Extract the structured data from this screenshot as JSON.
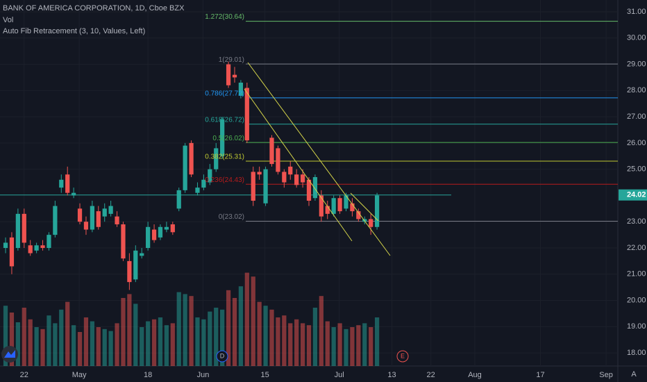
{
  "chart_data": {
    "type": "candlestick",
    "title": "BANK OF AMERICA CORPORATION, 1D, Cboe BZX",
    "volume_label": "Vol",
    "indicator_label": "Auto Fib Retracement (3, 10, Values, Left)",
    "open": [
      22.0,
      22.4,
      22.0,
      23.3,
      22.1,
      21.9,
      22.1,
      22.0,
      22.5,
      24.3,
      24.8,
      24.0,
      23.5,
      23.0,
      22.7,
      23.4,
      23.2,
      23.3,
      23.2,
      22.9,
      21.5,
      20.8,
      21.7,
      22.0,
      22.7,
      22.4,
      22.7,
      22.9,
      23.5,
      24.2,
      26.0,
      24.1,
      24.3,
      24.5,
      25.0,
      25.5,
      29.0,
      28.6,
      27.8,
      28.1,
      24.9,
      24.9,
      23.7,
      26.2,
      25.8,
      24.9,
      25.1,
      24.8,
      24.8,
      24.6,
      23.9,
      24.0,
      23.6,
      23.3,
      23.9,
      23.5,
      23.7,
      23.4,
      23.0,
      23.1,
      22.8
    ],
    "close": [
      22.2,
      21.3,
      23.3,
      22.2,
      21.8,
      22.1,
      22.0,
      22.5,
      23.6,
      24.6,
      24.1,
      24.1,
      23.0,
      22.7,
      23.6,
      22.8,
      23.5,
      23.6,
      22.9,
      21.6,
      20.7,
      21.9,
      21.8,
      22.8,
      22.3,
      22.8,
      22.8,
      22.6,
      24.2,
      25.9,
      24.8,
      24.3,
      24.6,
      25.0,
      25.8,
      26.9,
      28.2,
      28.5,
      28.3,
      26.1,
      23.8,
      24.8,
      25.0,
      25.2,
      24.9,
      24.5,
      24.8,
      24.4,
      24.5,
      23.8,
      24.7,
      23.2,
      23.3,
      23.9,
      23.4,
      24.0,
      23.4,
      23.1,
      23.1,
      22.8,
      24.0
    ],
    "high": [
      22.4,
      22.6,
      23.5,
      23.5,
      22.3,
      22.2,
      22.3,
      22.6,
      23.8,
      24.8,
      25.1,
      24.3,
      23.7,
      23.2,
      23.8,
      23.6,
      23.7,
      23.8,
      23.4,
      23.0,
      21.8,
      22.1,
      22.0,
      23.0,
      22.9,
      22.9,
      23.0,
      23.0,
      24.3,
      26.0,
      26.1,
      24.5,
      24.8,
      25.2,
      26.0,
      27.0,
      29.1,
      28.9,
      28.4,
      28.3,
      25.1,
      25.1,
      25.1,
      26.3,
      25.9,
      25.0,
      25.3,
      25.0,
      25.0,
      24.7,
      24.8,
      24.2,
      23.8,
      24.0,
      24.0,
      24.1,
      23.9,
      23.5,
      23.2,
      23.3,
      24.1
    ],
    "low": [
      21.8,
      21.0,
      21.9,
      22.0,
      21.7,
      21.8,
      21.9,
      21.9,
      22.4,
      24.1,
      24.0,
      23.9,
      22.9,
      22.5,
      22.6,
      22.7,
      23.0,
      23.2,
      22.8,
      21.5,
      20.4,
      20.7,
      21.6,
      21.9,
      22.2,
      22.3,
      22.6,
      22.5,
      23.4,
      24.1,
      24.7,
      24.0,
      24.2,
      24.4,
      24.9,
      25.4,
      28.1,
      28.3,
      27.7,
      26.0,
      23.6,
      24.6,
      23.6,
      25.1,
      24.8,
      24.3,
      24.6,
      24.3,
      24.3,
      23.6,
      23.8,
      23.0,
      23.1,
      23.2,
      23.3,
      23.4,
      23.2,
      23.0,
      22.9,
      22.5,
      22.7
    ],
    "volume": [
      62,
      55,
      45,
      60,
      48,
      40,
      38,
      52,
      44,
      58,
      66,
      42,
      35,
      50,
      46,
      40,
      38,
      36,
      44,
      70,
      74,
      64,
      40,
      46,
      48,
      50,
      42,
      44,
      76,
      74,
      72,
      50,
      48,
      56,
      60,
      58,
      78,
      70,
      82,
      96,
      92,
      66,
      62,
      58,
      50,
      52,
      44,
      48,
      44,
      42,
      60,
      72,
      46,
      40,
      44,
      38,
      40,
      42,
      44,
      40,
      50
    ],
    "ylim": [
      17.5,
      31.45
    ],
    "yticks": [
      {
        "value": 31,
        "label": "31.00"
      },
      {
        "value": 30,
        "label": "30.00"
      },
      {
        "value": 29,
        "label": "29.00"
      },
      {
        "value": 28,
        "label": "28.00"
      },
      {
        "value": 27,
        "label": "27.00"
      },
      {
        "value": 26,
        "label": "26.00"
      },
      {
        "value": 25,
        "label": "25.00"
      },
      {
        "value": 23,
        "label": "23.00"
      },
      {
        "value": 22,
        "label": "22.00"
      },
      {
        "value": 21,
        "label": "21.00"
      },
      {
        "value": 20,
        "label": "20.00"
      },
      {
        "value": 19,
        "label": "19.00"
      },
      {
        "value": 18,
        "label": "18.00"
      }
    ],
    "xlim": [
      -0.9,
      98.9
    ],
    "xticks": [
      {
        "value": 3.0,
        "label": "22"
      },
      {
        "value": 11.9,
        "label": "May"
      },
      {
        "value": 23,
        "label": "18"
      },
      {
        "value": 31.9,
        "label": "Jun"
      },
      {
        "value": 41.9,
        "label": "15"
      },
      {
        "value": 53.9,
        "label": "Jul"
      },
      {
        "value": 62.4,
        "label": "13"
      },
      {
        "value": 68.7,
        "label": "22"
      },
      {
        "value": 75.8,
        "label": "Aug"
      },
      {
        "value": 86.4,
        "label": "17"
      },
      {
        "value": 97,
        "label": "Sep"
      }
    ],
    "last_price": 24.02,
    "fib_levels": [
      {
        "label": "1.272(30.64)",
        "value": 30.64,
        "color": "#66bb6a"
      },
      {
        "label": "1(29.01)",
        "value": 29.01,
        "color": "#787b86"
      },
      {
        "label": "0.786(27.72)",
        "value": 27.72,
        "color": "#2196f3"
      },
      {
        "label": "0.618(26.72)",
        "value": 26.72,
        "color": "#26a69a"
      },
      {
        "label": "0.5(26.02)",
        "value": 26.02,
        "color": "#4caf50"
      },
      {
        "label": "0.382(25.31)",
        "value": 25.31,
        "color": "#c0ca33"
      },
      {
        "label": "0.236(24.43)",
        "value": 24.43,
        "color": "#b71c1c"
      },
      {
        "label": "0(23.02)",
        "value": 23.02,
        "color": "#787b86"
      }
    ],
    "up_color": "#26a69a",
    "down_color": "#ef5350",
    "event_markers": [
      "D",
      "E"
    ]
  }
}
